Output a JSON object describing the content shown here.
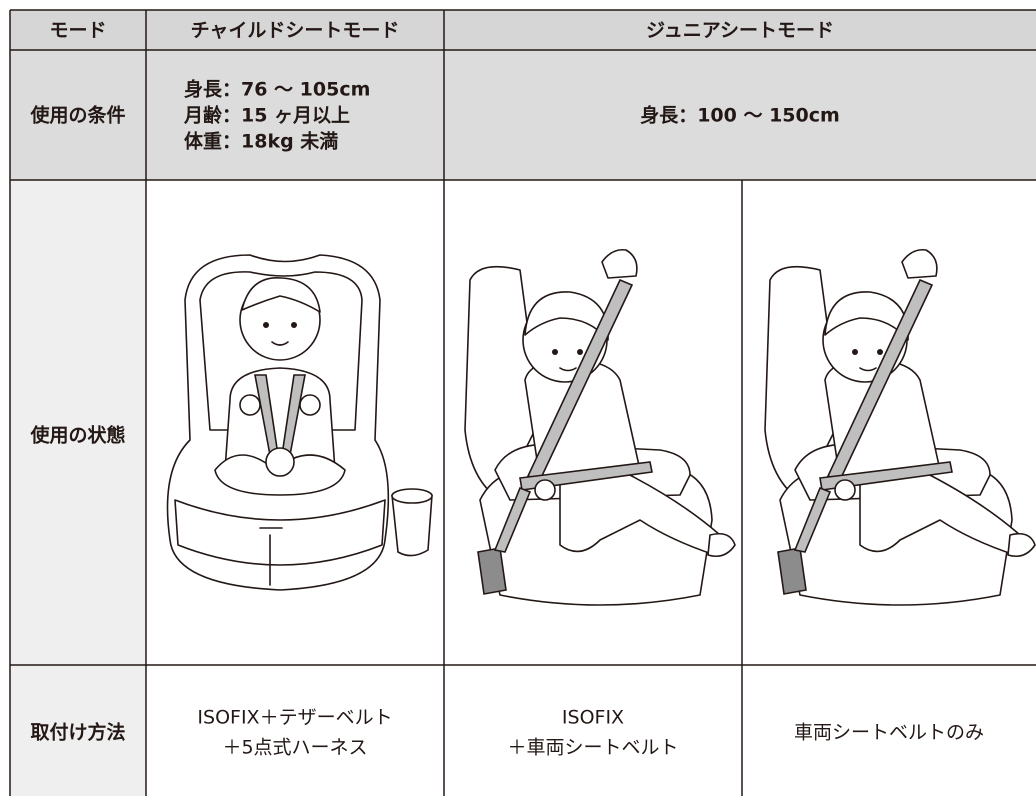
{
  "table": {
    "header": [
      "モード",
      "チャイルドシートモード",
      "ジュニアシートモード"
    ],
    "conditions": {
      "label": "使用の条件",
      "child": [
        "身長：76 ～ 105cm",
        "月齢：15 ヶ月以上",
        "体重：18kg 未満"
      ],
      "junior": "身長：100 ～ 150cm"
    },
    "state": {
      "label": "使用の状態"
    },
    "install": {
      "label": "取付け方法",
      "cells": [
        [
          "ISOFIX＋テザーベルト",
          "＋5点式ハーネス"
        ],
        [
          "ISOFIX",
          "＋車両シートベルト"
        ],
        [
          "車両シートベルトのみ"
        ]
      ]
    }
  }
}
